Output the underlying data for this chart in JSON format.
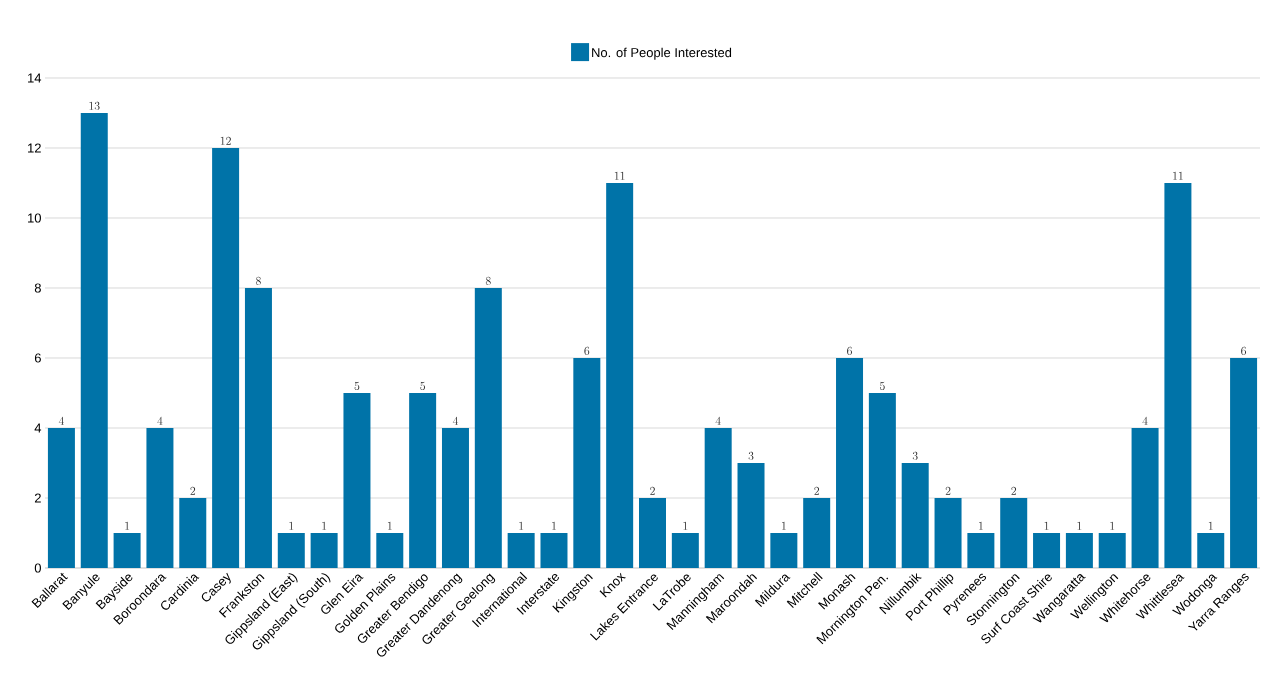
{
  "chart_data": {
    "type": "bar",
    "categories": [
      "Ballarat",
      "Banyule",
      "Bayside",
      "Boroondara",
      "Cardinia",
      "Casey",
      "Frankston",
      "Gippsland (East)",
      "Gippsland (South)",
      "Glen Eira",
      "Golden Plains",
      "Greater Bendigo",
      "Greater Dandenong",
      "Greater Geelong",
      "International",
      "Interstate",
      "Kingston",
      "Knox",
      "Lakes Entrance",
      "LaTrobe",
      "Manningham",
      "Maroondah",
      "Mildura",
      "Mitchell",
      "Monash",
      "Mornington Pen.",
      "Nillumbik",
      "Port Phillip",
      "Pyrenees",
      "Stonnington",
      "Surf Coast Shire",
      "Wangaratta",
      "Wellington",
      "Whitehorse",
      "Whittlesea",
      "Wodonga",
      "Yarra Ranges"
    ],
    "series": [
      {
        "name": "No. of People Interested",
        "color": "#0073a8",
        "values": [
          4,
          13,
          1,
          4,
          2,
          12,
          8,
          1,
          1,
          5,
          1,
          5,
          4,
          8,
          1,
          1,
          6,
          11,
          2,
          1,
          4,
          3,
          1,
          2,
          6,
          5,
          3,
          2,
          1,
          2,
          1,
          1,
          1,
          4,
          11,
          1,
          6
        ]
      }
    ],
    "ylim": [
      0,
      14
    ],
    "yticks": [
      0,
      2,
      4,
      6,
      8,
      10,
      12,
      14
    ],
    "grid": "y",
    "legend": "top",
    "data_labels": true
  }
}
